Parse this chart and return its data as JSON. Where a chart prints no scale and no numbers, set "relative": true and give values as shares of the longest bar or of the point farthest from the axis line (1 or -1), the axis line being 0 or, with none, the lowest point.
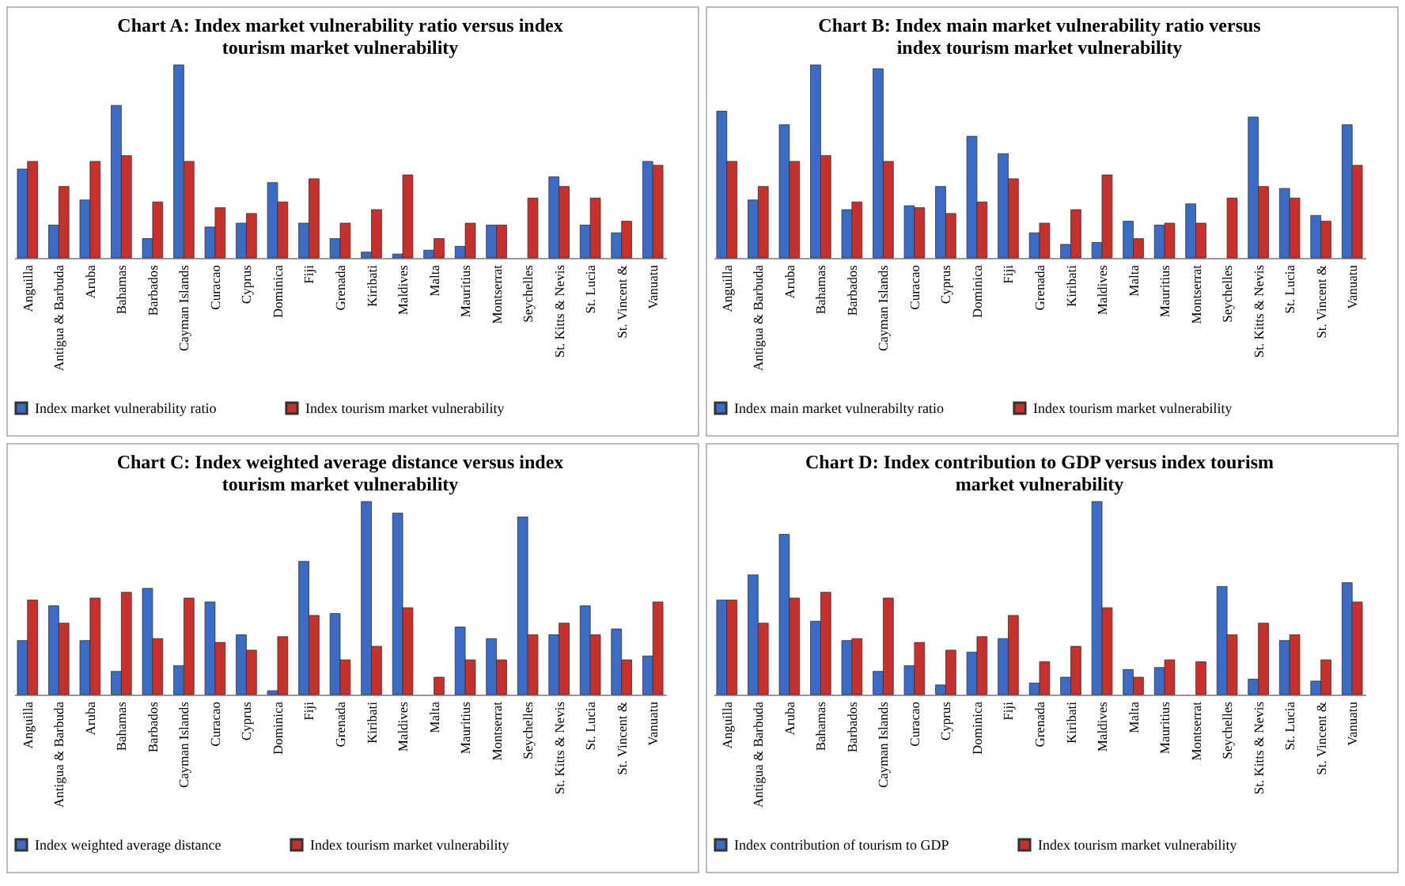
{
  "chart_data": [
    {
      "type": "bar",
      "title": "Chart A: Index market vulnerability ratio versus index tourism market vulnerability",
      "relative": true,
      "legend": "bottom",
      "categories": [
        "Anguilla",
        "Antigua & Barbuda",
        "Aruba",
        "Bahamas",
        "Barbados",
        "Cayman Islands",
        "Curacao",
        "Cyprus",
        "Dominica",
        "Fiji",
        "Grenada",
        "Kiribati",
        "Maldives",
        "Malta",
        "Mauritius",
        "Montserrat",
        "Seychelles",
        "St. Kitts & Nevis",
        "St. Lucia",
        "St. Vincent &",
        "Vanuatu"
      ],
      "series": [
        {
          "name": "Index market vulnerability ratio",
          "color": "#3a6cc6",
          "values": [
            0.46,
            0.17,
            0.3,
            0.79,
            0.1,
            1,
            0.16,
            0.18,
            0.39,
            0.18,
            0.1,
            0.03,
            0.02,
            0.04,
            0.06,
            0.17,
            null,
            0.42,
            0.17,
            0.13,
            0.5
          ]
        },
        {
          "name": "Index tourism market vulnerability",
          "color": "#c8302c",
          "values": [
            0.5,
            0.37,
            0.5,
            0.53,
            0.29,
            0.5,
            0.26,
            0.23,
            0.29,
            0.41,
            0.18,
            0.25,
            0.43,
            0.1,
            0.18,
            0.17,
            0.31,
            0.37,
            0.31,
            0.19,
            0.48
          ]
        }
      ]
    },
    {
      "type": "bar",
      "title": "Chart B: Index main market vulnerability ratio versus index tourism market vulnerability",
      "relative": true,
      "legend": "bottom",
      "categories": [
        "Anguilla",
        "Antigua & Barbuda",
        "Aruba",
        "Bahamas",
        "Barbados",
        "Cayman Islands",
        "Curacao",
        "Cyprus",
        "Dominica",
        "Fiji",
        "Grenada",
        "Kiribati",
        "Maldives",
        "Malta",
        "Mauritius",
        "Montserrat",
        "Seychelles",
        "St. Kitts & Nevis",
        "St. Lucia",
        "St. Vincent &",
        "Vanuatu"
      ],
      "series": [
        {
          "name": "Index main market vulnerabilty ratio",
          "color": "#3a6cc6",
          "values": [
            0.76,
            0.3,
            0.69,
            1,
            0.25,
            0.98,
            0.27,
            0.37,
            0.63,
            0.54,
            0.13,
            0.07,
            0.08,
            0.19,
            0.17,
            0.28,
            null,
            0.73,
            0.36,
            0.22,
            0.69
          ]
        },
        {
          "name": "Index tourism market vulnerability",
          "color": "#c8302c",
          "values": [
            0.5,
            0.37,
            0.5,
            0.53,
            0.29,
            0.5,
            0.26,
            0.23,
            0.29,
            0.41,
            0.18,
            0.25,
            0.43,
            0.1,
            0.18,
            0.18,
            0.31,
            0.37,
            0.31,
            0.19,
            0.48
          ]
        }
      ]
    },
    {
      "type": "bar",
      "title": "Chart C: Index weighted average distance versus index tourism market vulnerability",
      "relative": true,
      "legend": "bottom",
      "categories": [
        "Anguilla",
        "Antigua & Barbuda",
        "Aruba",
        "Bahamas",
        "Barbados",
        "Cayman Islands",
        "Curacao",
        "Cyprus",
        "Dominica",
        "Fiji",
        "Grenada",
        "Kiribati",
        "Maldives",
        "Malta",
        "Mauritius",
        "Montserrat",
        "Seychelles",
        "St. Kitts & Nevis",
        "St. Lucia",
        "St. Vincent &",
        "Vanuatu"
      ],
      "series": [
        {
          "name": "Index weighted average distance",
          "color": "#3a6cc6",
          "values": [
            0.28,
            0.46,
            0.28,
            0.12,
            0.55,
            0.15,
            0.48,
            0.31,
            0.02,
            0.69,
            0.42,
            1,
            0.94,
            null,
            0.35,
            0.29,
            0.92,
            0.31,
            0.46,
            0.34,
            0.2
          ]
        },
        {
          "name": "Index tourism market vulnerability",
          "color": "#c8302c",
          "values": [
            0.49,
            0.37,
            0.5,
            0.53,
            0.29,
            0.5,
            0.27,
            0.23,
            0.3,
            0.41,
            0.18,
            0.25,
            0.45,
            0.09,
            0.18,
            0.18,
            0.31,
            0.37,
            0.31,
            0.18,
            0.48
          ]
        }
      ]
    },
    {
      "type": "bar",
      "title": "Chart D: Index contribution to GDP versus index tourism market vulnerability",
      "relative": true,
      "legend": "bottom",
      "categories": [
        "Anguilla",
        "Antigua & Barbuda",
        "Aruba",
        "Bahamas",
        "Barbados",
        "Cayman Islands",
        "Curacao",
        "Cyprus",
        "Dominica",
        "Fiji",
        "Grenada",
        "Kiribati",
        "Maldives",
        "Malta",
        "Mauritius",
        "Montserrat",
        "Seychelles",
        "St. Kitts & Nevis",
        "St. Lucia",
        "St. Vincent &",
        "Vanuatu"
      ],
      "series": [
        {
          "name": "Index contribution of tourism to GDP",
          "color": "#3a6cc6",
          "values": [
            0.49,
            0.62,
            0.83,
            0.38,
            0.28,
            0.12,
            0.15,
            0.05,
            0.22,
            0.29,
            0.06,
            0.09,
            1,
            0.13,
            0.14,
            null,
            0.56,
            0.08,
            0.28,
            0.07,
            0.58
          ]
        },
        {
          "name": "Index tourism market vulnerability",
          "color": "#c8302c",
          "values": [
            0.49,
            0.37,
            0.5,
            0.53,
            0.29,
            0.5,
            0.27,
            0.23,
            0.3,
            0.41,
            0.17,
            0.25,
            0.45,
            0.09,
            0.18,
            0.17,
            0.31,
            0.37,
            0.31,
            0.18,
            0.48
          ]
        }
      ]
    }
  ]
}
